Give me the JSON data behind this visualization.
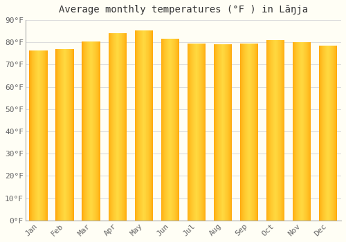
{
  "title": "Average monthly temperatures (°F ) in Lāŋja",
  "months": [
    "Jan",
    "Feb",
    "Mar",
    "Apr",
    "May",
    "Jun",
    "Jul",
    "Aug",
    "Sep",
    "Oct",
    "Nov",
    "Dec"
  ],
  "values": [
    76.5,
    77.0,
    80.5,
    84.0,
    85.5,
    81.5,
    79.5,
    79.0,
    79.5,
    81.0,
    80.0,
    78.5
  ],
  "bar_color_center": "#FFD840",
  "bar_color_edge": "#FFA000",
  "background_color": "#FFFEF5",
  "grid_color": "#DDDDDD",
  "ylim": [
    0,
    90
  ],
  "yticks": [
    0,
    10,
    20,
    30,
    40,
    50,
    60,
    70,
    80,
    90
  ],
  "ytick_labels": [
    "0°F",
    "10°F",
    "20°F",
    "30°F",
    "40°F",
    "50°F",
    "60°F",
    "70°F",
    "80°F",
    "90°F"
  ],
  "title_fontsize": 10,
  "tick_fontsize": 8,
  "font_family": "monospace"
}
